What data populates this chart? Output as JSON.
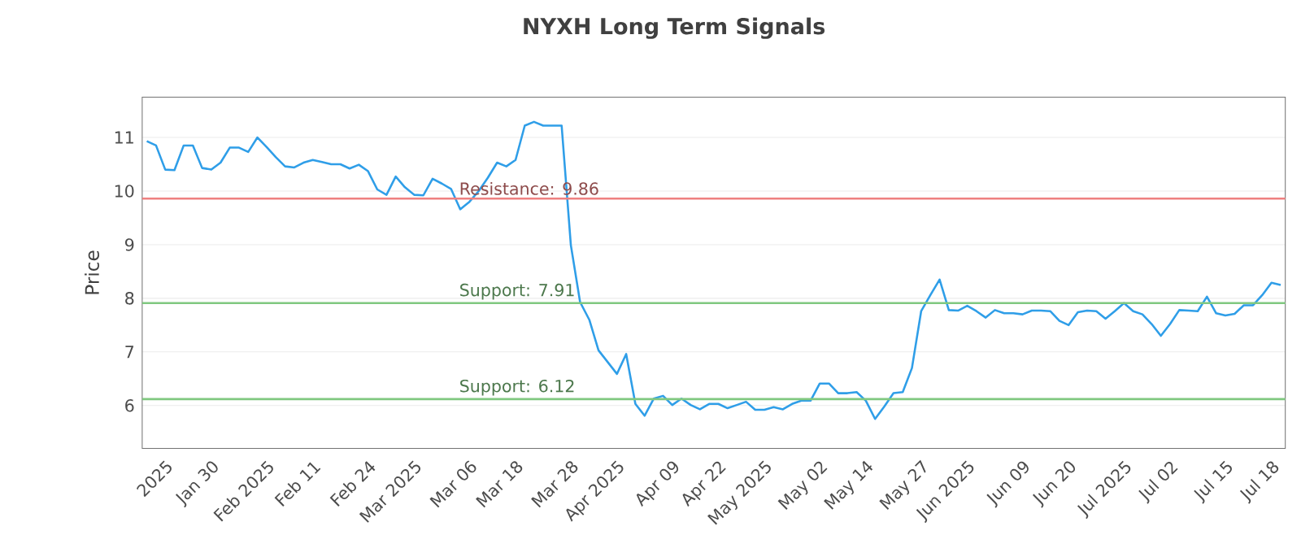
{
  "chart_data": {
    "type": "line",
    "title": "NYXH Long Term Signals",
    "ylabel": "Price",
    "categories": [
      null,
      null,
      "2025",
      null,
      null,
      null,
      null,
      "Jan 30",
      null,
      null,
      null,
      null,
      null,
      "Feb 2025",
      null,
      null,
      null,
      null,
      "Feb 11",
      null,
      null,
      null,
      null,
      null,
      "Feb 24",
      null,
      null,
      null,
      null,
      "Mar 2025",
      null,
      null,
      null,
      null,
      null,
      "Mar 06",
      null,
      null,
      null,
      null,
      "Mar 18",
      null,
      null,
      null,
      null,
      null,
      "Mar 28",
      null,
      null,
      null,
      null,
      "Apr 2025",
      null,
      null,
      null,
      null,
      null,
      "Apr 09",
      null,
      null,
      null,
      null,
      "Apr 22",
      null,
      null,
      null,
      null,
      "May 2025",
      null,
      null,
      null,
      null,
      null,
      "May 02",
      null,
      null,
      null,
      null,
      "May 14",
      null,
      null,
      null,
      null,
      null,
      "May 27",
      null,
      null,
      null,
      null,
      "Jun 2025",
      null,
      null,
      null,
      null,
      null,
      "Jun 09",
      null,
      null,
      null,
      null,
      "Jun 20",
      null,
      null,
      null,
      null,
      null,
      "Jul 2025",
      null,
      null,
      null,
      null,
      "Jul 02",
      null,
      null,
      null,
      null,
      null,
      "Jul 15",
      null,
      null,
      null,
      null,
      "Jul 18",
      null
    ],
    "series": [
      {
        "color": "#2f9ee8",
        "values": [
          10.93,
          10.85,
          10.4,
          10.39,
          10.85,
          10.85,
          10.43,
          10.4,
          10.53,
          10.81,
          10.81,
          10.73,
          11.0,
          10.82,
          10.63,
          10.46,
          10.44,
          10.53,
          10.58,
          10.54,
          10.5,
          10.5,
          10.42,
          10.49,
          10.37,
          10.03,
          9.93,
          10.27,
          10.07,
          9.93,
          9.92,
          10.23,
          10.14,
          10.04,
          9.66,
          9.8,
          10.0,
          10.25,
          10.53,
          10.46,
          10.58,
          11.22,
          11.29,
          11.22,
          11.22,
          11.22,
          8.99,
          7.93,
          7.6,
          7.03,
          6.81,
          6.59,
          6.96,
          6.03,
          5.81,
          6.13,
          6.18,
          6.01,
          6.13,
          6.01,
          5.93,
          6.03,
          6.03,
          5.95,
          6.01,
          6.07,
          5.92,
          5.92,
          5.97,
          5.93,
          6.03,
          6.09,
          6.09,
          6.41,
          6.41,
          6.23,
          6.23,
          6.25,
          6.09,
          5.75,
          5.98,
          6.23,
          6.25,
          6.7,
          7.76,
          8.06,
          8.35,
          7.78,
          7.77,
          7.86,
          7.76,
          7.64,
          7.78,
          7.72,
          7.72,
          7.7,
          7.77,
          7.77,
          7.76,
          7.58,
          7.5,
          7.74,
          7.77,
          7.76,
          7.62,
          7.76,
          7.91,
          7.76,
          7.7,
          7.52,
          7.3,
          7.52,
          7.78,
          7.77,
          7.76,
          8.03,
          7.72,
          7.68,
          7.71,
          7.87,
          7.87,
          8.06,
          8.29,
          8.25
        ]
      }
    ],
    "ylim": [
      5.2,
      11.75
    ],
    "yticks": [
      6,
      7,
      8,
      9,
      10,
      11
    ],
    "grid": "y",
    "marker": "none",
    "line_style": "solid",
    "ref_lines": [
      {
        "axis": "y",
        "value": 9.86,
        "label": "Resistance: 9.86",
        "color": "#ee8080"
      },
      {
        "axis": "y",
        "value": 7.91,
        "label": "Support: 7.91",
        "color": "#80c880"
      },
      {
        "axis": "y",
        "value": 6.12,
        "label": "Support: 6.12",
        "color": "#80c880"
      }
    ]
  }
}
